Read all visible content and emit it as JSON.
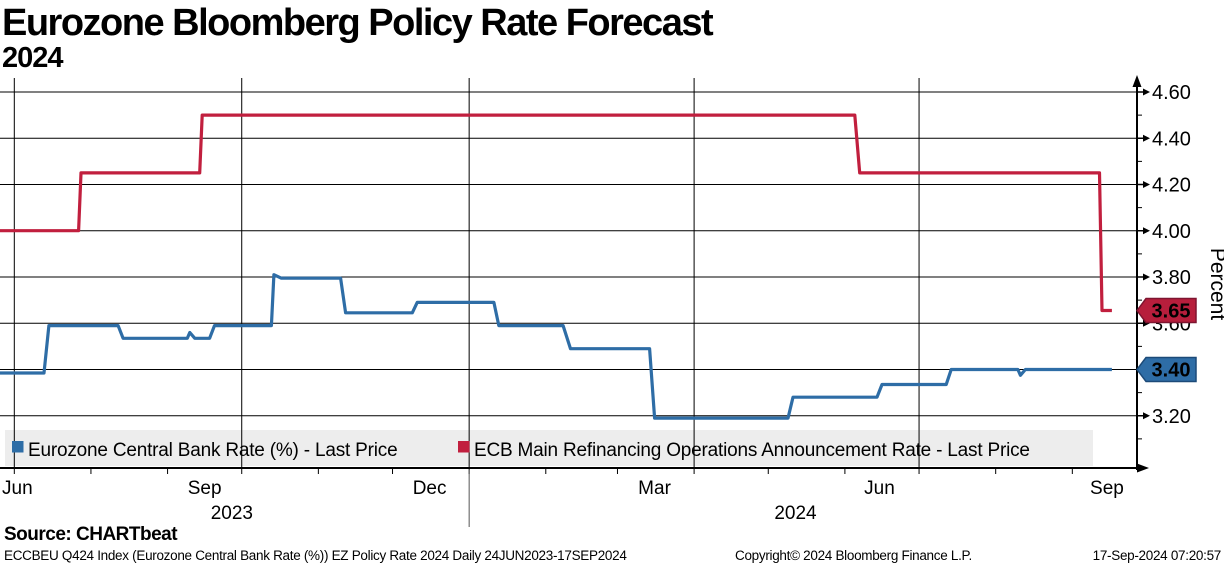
{
  "title": "Eurozone Bloomberg Policy Rate Forecast",
  "subtitle": "2024",
  "chart_data": {
    "type": "line",
    "title": "Eurozone Bloomberg Policy Rate Forecast 2024",
    "ylabel": "Percent",
    "ylim": [
      2.97,
      4.66
    ],
    "grid": true,
    "legend_position": "bottom-inside",
    "x_range": {
      "start": "24JUN2023",
      "end": "17SEP2024",
      "total_days": 451
    },
    "y_major_ticks": [
      4.6,
      4.4,
      4.2,
      4.0,
      3.8,
      3.6,
      3.4,
      3.2
    ],
    "y_major_tick_labels": [
      "4.60",
      "4.40",
      "4.20",
      "4.00",
      "3.80",
      "3.60",
      "3.40",
      "3.20"
    ],
    "y_minor_ticks": [
      4.5,
      4.3,
      4.1,
      3.9,
      3.7,
      3.5,
      3.3,
      3.1
    ],
    "x_month_tick_days": [
      7,
      38,
      69,
      99,
      130,
      160,
      191,
      222,
      251,
      282,
      312,
      343,
      373,
      404,
      435
    ],
    "x_quarter_gridline_days": [
      7,
      99,
      191,
      282,
      373
    ],
    "x_month_labels": [
      {
        "label": "Jun",
        "day": 0,
        "align": "left"
      },
      {
        "label": "Sep",
        "day": 84
      },
      {
        "label": "Dec",
        "day": 175
      },
      {
        "label": "Mar",
        "day": 266
      },
      {
        "label": "Jun",
        "day": 357
      },
      {
        "label": "Sep",
        "day": 449
      }
    ],
    "year_labels": [
      {
        "label": "2023",
        "day": 95
      },
      {
        "label": "2024",
        "day": 323
      }
    ],
    "year_separator_day": 191,
    "series": [
      {
        "id": "ecb-main-refinancing-rate",
        "name": "ECB Main Refinancing Operations Announcement Rate - Last Price",
        "color": "#c11f3e",
        "last_price": "3.65",
        "points": [
          [
            0,
            4.0
          ],
          [
            33,
            4.0
          ],
          [
            34,
            4.25
          ],
          [
            82,
            4.25
          ],
          [
            83,
            4.5
          ],
          [
            347,
            4.5
          ],
          [
            349,
            4.25
          ],
          [
            446,
            4.25
          ],
          [
            447,
            3.655
          ],
          [
            451,
            3.655
          ]
        ]
      },
      {
        "id": "eurozone-central-bank-rate",
        "name": "Eurozone Central Bank Rate (%) - Last Price",
        "color": "#2e6da6",
        "last_price": "3.40",
        "points": [
          [
            0,
            3.385
          ],
          [
            19,
            3.385
          ],
          [
            21,
            3.59
          ],
          [
            49,
            3.59
          ],
          [
            51,
            3.535
          ],
          [
            77,
            3.535
          ],
          [
            78,
            3.56
          ],
          [
            80,
            3.535
          ],
          [
            86,
            3.535
          ],
          [
            88,
            3.59
          ],
          [
            111,
            3.59
          ],
          [
            112,
            3.81
          ],
          [
            115,
            3.795
          ],
          [
            139,
            3.795
          ],
          [
            141,
            3.645
          ],
          [
            168,
            3.645
          ],
          [
            170,
            3.69
          ],
          [
            201,
            3.69
          ],
          [
            203,
            3.59
          ],
          [
            229,
            3.59
          ],
          [
            232,
            3.49
          ],
          [
            264,
            3.49
          ],
          [
            266,
            3.19
          ],
          [
            320,
            3.19
          ],
          [
            322,
            3.28
          ],
          [
            356,
            3.28
          ],
          [
            358,
            3.335
          ],
          [
            384,
            3.335
          ],
          [
            386,
            3.4
          ],
          [
            413,
            3.4
          ],
          [
            414,
            3.375
          ],
          [
            416,
            3.4
          ],
          [
            451,
            3.4
          ]
        ]
      }
    ],
    "badges": [
      {
        "value": "3.65",
        "anchor_value": 3.655,
        "fill": "#b71e3c",
        "stroke": "#7e1430",
        "text_color": "#ffffff"
      },
      {
        "value": "3.40",
        "anchor_value": 3.4,
        "fill": "#2e6da6",
        "stroke": "#1c4a78",
        "text_color": "#ffffff"
      }
    ]
  },
  "legend": {
    "background": "#ededed",
    "items": [
      {
        "id": "eurozone-central-bank-rate",
        "label": "Eurozone Central Bank Rate (%) - Last Price",
        "color": "#2e6da6"
      },
      {
        "id": "ecb-main-refinancing-rate",
        "label": "ECB Main Refinancing Operations Announcement Rate - Last Price",
        "color": "#c11f3e"
      }
    ]
  },
  "footer": {
    "source": "Source: CHARTbeat",
    "description": "ECCBEU Q424 Index (Eurozone Central Bank Rate (%)) EZ Policy Rate 2024  Daily 24JUN2023-17SEP2024",
    "copyright": "Copyright© 2024 Bloomberg Finance L.P.",
    "timestamp": "17-Sep-2024 07:20:57"
  }
}
